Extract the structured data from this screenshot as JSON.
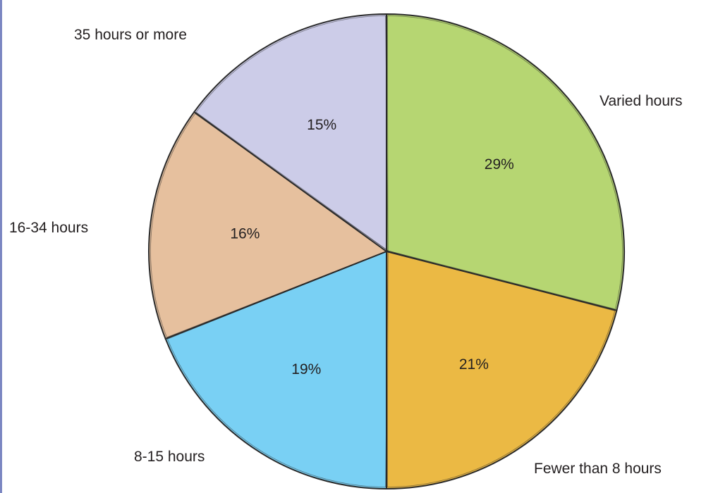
{
  "chart_data": {
    "type": "pie",
    "slices": [
      {
        "label": "Varied hours",
        "value": 29,
        "value_label": "29%",
        "color": "#b6d672"
      },
      {
        "label": "Fewer than 8 hours",
        "value": 21,
        "value_label": "21%",
        "color": "#ebb944"
      },
      {
        "label": "8-15 hours",
        "value": 19,
        "value_label": "19%",
        "color": "#79d0f4"
      },
      {
        "label": "16-34 hours",
        "value": 16,
        "value_label": "16%",
        "color": "#e6c09e"
      },
      {
        "label": "35 hours or more",
        "value": 15,
        "value_label": "15%",
        "color": "#cccce8"
      }
    ],
    "start_angle": "12 o'clock",
    "direction": "clockwise",
    "legend": "none",
    "outline_color": "#2a2a2a"
  },
  "frame": {
    "left_rule_color": "#7b86c2"
  }
}
